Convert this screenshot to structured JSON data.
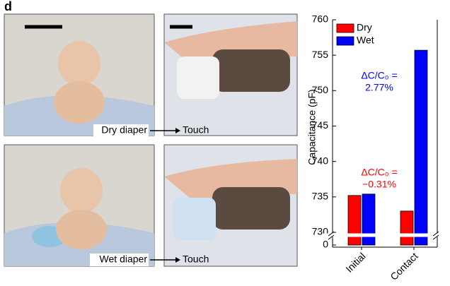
{
  "figure": {
    "panel_label": "d",
    "photos": [
      {
        "label": "Dry diaper",
        "action": "Touch"
      },
      {
        "label": "Wet diaper",
        "action": "Touch"
      }
    ]
  },
  "chart_data": {
    "type": "bar",
    "y_label": "Capacitance (pF)",
    "categories": [
      "Initial",
      "Contact"
    ],
    "series": [
      {
        "name": "Dry",
        "color": "#ff0000",
        "values": [
          735.2,
          733.0
        ]
      },
      {
        "name": "Wet",
        "color": "#0000ff",
        "values": [
          735.4,
          755.7
        ]
      }
    ],
    "ylim": [
      730,
      760
    ],
    "yticks": [
      730,
      735,
      740,
      745,
      750,
      755,
      760
    ],
    "yticks_below_break": [
      0
    ],
    "annotations": [
      {
        "lines": [
          "ΔC/C₀ =",
          "2.77%"
        ],
        "color": "#0000ff",
        "category": 1
      },
      {
        "lines": [
          "ΔC/C₀ =",
          "−0.31%"
        ],
        "color": "#ff0000",
        "category": 1
      }
    ],
    "legend": "upper-left"
  }
}
